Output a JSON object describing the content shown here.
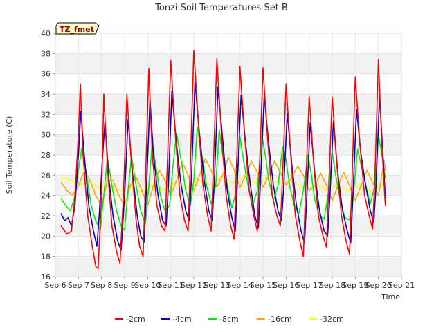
{
  "chart_data": {
    "type": "line",
    "title": "Tonzi Soil Temperatures Set B",
    "xlabel": "Time",
    "ylabel": "Soil Temperature (C)",
    "badge": "TZ_fmet",
    "xlim": [
      6,
      21
    ],
    "ylim": [
      16,
      40
    ],
    "yticks": [
      16,
      18,
      20,
      22,
      24,
      26,
      28,
      30,
      32,
      34,
      36,
      38,
      40
    ],
    "xtick_values": [
      6,
      7,
      8,
      9,
      10,
      11,
      12,
      13,
      14,
      15,
      16,
      17,
      18,
      19,
      20,
      21
    ],
    "xtick_labels": [
      "Sep 6",
      "Sep 7",
      "Sep 8",
      "Sep 9",
      "Sep 10",
      "Sep 11",
      "Sep 12",
      "Sep 13",
      "Sep 14",
      "Sep 15",
      "Sep 16",
      "Sep 17",
      "Sep 18",
      "Sep 19",
      "Sep 20",
      "Sep 21"
    ],
    "grid": "horizontal bands",
    "legend_position": "bottom",
    "series": [
      {
        "name": "-2cm",
        "color": "#ff0000",
        "x": [
          6.25,
          6.5,
          6.7,
          6.85,
          7.0,
          7.08,
          7.2,
          7.4,
          7.6,
          7.75,
          7.85,
          8.0,
          8.1,
          8.25,
          8.45,
          8.65,
          8.8,
          8.95,
          9.1,
          9.3,
          9.5,
          9.65,
          9.8,
          9.9,
          10.05,
          10.2,
          10.4,
          10.6,
          10.75,
          10.85,
          11.0,
          11.2,
          11.4,
          11.6,
          11.75,
          11.85,
          12.0,
          12.2,
          12.4,
          12.6,
          12.75,
          12.85,
          13.0,
          13.2,
          13.4,
          13.6,
          13.75,
          13.85,
          14.0,
          14.2,
          14.4,
          14.6,
          14.75,
          14.85,
          15.0,
          15.2,
          15.4,
          15.6,
          15.75,
          15.85,
          16.0,
          16.2,
          16.4,
          16.6,
          16.75,
          16.85,
          17.0,
          17.2,
          17.4,
          17.6,
          17.75,
          17.85,
          18.0,
          18.2,
          18.4,
          18.6,
          18.75,
          18.85,
          19.0,
          19.2,
          19.4,
          19.6,
          19.75,
          19.85,
          20.0,
          20.15,
          20.3
        ],
        "y": [
          21.0,
          20.2,
          20.5,
          24.0,
          30.0,
          35.0,
          28.0,
          22.0,
          19.0,
          17.0,
          16.8,
          24.0,
          34.0,
          27.0,
          21.0,
          18.5,
          17.3,
          24.0,
          34.0,
          27.0,
          21.5,
          19.0,
          18.0,
          25.0,
          36.5,
          28.0,
          23.0,
          21.0,
          20.5,
          27.0,
          37.3,
          30.0,
          24.0,
          21.5,
          20.5,
          27.0,
          38.3,
          31.0,
          25.0,
          22.0,
          20.5,
          27.0,
          37.5,
          30.0,
          24.0,
          21.0,
          19.7,
          27.0,
          36.7,
          30.0,
          24.5,
          22.0,
          20.5,
          27.0,
          36.6,
          29.5,
          24.0,
          22.0,
          21.0,
          26.0,
          35.0,
          28.0,
          22.0,
          19.5,
          18.0,
          25.0,
          33.8,
          27.0,
          22.0,
          20.0,
          18.9,
          25.0,
          33.7,
          27.0,
          22.0,
          19.5,
          18.2,
          25.0,
          35.7,
          29.0,
          24.0,
          22.0,
          20.7,
          26.0,
          37.4,
          29.0,
          23.0
        ]
      },
      {
        "name": "-4cm",
        "color": "#0000cc",
        "x": [
          6.25,
          6.4,
          6.55,
          6.7,
          6.85,
          7.0,
          7.1,
          7.25,
          7.45,
          7.65,
          7.8,
          7.9,
          8.05,
          8.15,
          8.3,
          8.5,
          8.7,
          8.85,
          9.0,
          9.15,
          9.35,
          9.55,
          9.7,
          9.85,
          9.95,
          10.1,
          10.25,
          10.45,
          10.65,
          10.8,
          10.9,
          11.05,
          11.25,
          11.45,
          11.65,
          11.8,
          11.9,
          12.05,
          12.25,
          12.45,
          12.65,
          12.8,
          12.9,
          13.05,
          13.25,
          13.45,
          13.65,
          13.8,
          13.9,
          14.05,
          14.25,
          14.45,
          14.65,
          14.8,
          14.9,
          15.05,
          15.25,
          15.45,
          15.65,
          15.8,
          15.9,
          16.05,
          16.25,
          16.45,
          16.65,
          16.8,
          16.9,
          17.05,
          17.25,
          17.45,
          17.65,
          17.8,
          17.9,
          18.05,
          18.25,
          18.45,
          18.65,
          18.8,
          18.9,
          19.05,
          19.25,
          19.45,
          19.65,
          19.8,
          19.9,
          20.05,
          20.2,
          20.3
        ],
        "y": [
          22.2,
          21.5,
          21.8,
          21.0,
          23.0,
          28.0,
          32.3,
          28.0,
          23.0,
          20.5,
          19.0,
          22.0,
          28.0,
          31.3,
          26.0,
          22.0,
          19.5,
          18.6,
          24.0,
          31.5,
          26.0,
          22.0,
          20.0,
          19.4,
          25.0,
          33.5,
          28.0,
          24.0,
          21.5,
          21.0,
          25.0,
          34.3,
          29.0,
          25.0,
          22.5,
          21.5,
          26.0,
          35.2,
          30.0,
          25.5,
          22.5,
          21.5,
          26.0,
          34.7,
          29.5,
          24.5,
          21.8,
          20.5,
          26.0,
          33.9,
          29.0,
          25.0,
          22.0,
          20.8,
          26.0,
          33.8,
          29.0,
          25.0,
          22.5,
          21.5,
          25.0,
          32.1,
          27.0,
          23.0,
          20.5,
          19.3,
          24.0,
          31.2,
          26.0,
          22.5,
          20.5,
          20.0,
          24.0,
          31.3,
          26.0,
          22.5,
          20.5,
          19.3,
          24.0,
          32.5,
          28.0,
          25.0,
          22.5,
          21.3,
          25.0,
          33.8,
          28.0,
          23.8
        ]
      },
      {
        "name": "-8cm",
        "color": "#00ee00",
        "x": [
          6.25,
          6.45,
          6.65,
          6.85,
          7.0,
          7.15,
          7.35,
          7.55,
          7.75,
          7.95,
          8.1,
          8.25,
          8.45,
          8.65,
          8.85,
          9.0,
          9.15,
          9.3,
          9.5,
          9.7,
          9.9,
          10.05,
          10.2,
          10.35,
          10.55,
          10.75,
          10.95,
          11.1,
          11.25,
          11.45,
          11.65,
          11.85,
          12.0,
          12.15,
          12.35,
          12.55,
          12.75,
          12.95,
          13.1,
          13.25,
          13.45,
          13.65,
          13.85,
          14.0,
          14.15,
          14.35,
          14.55,
          14.75,
          14.95,
          15.1,
          15.25,
          15.45,
          15.65,
          15.85,
          16.0,
          16.15,
          16.35,
          16.55,
          16.75,
          16.95,
          17.1,
          17.25,
          17.45,
          17.65,
          17.85,
          18.0,
          18.15,
          18.35,
          18.55,
          18.75,
          18.95,
          19.1,
          19.25,
          19.45,
          19.65,
          19.85,
          20.0,
          20.15,
          20.3
        ],
        "y": [
          23.7,
          23.0,
          22.5,
          24.0,
          26.5,
          28.7,
          26.0,
          23.0,
          21.5,
          20.6,
          24.0,
          27.8,
          25.0,
          22.5,
          21.0,
          20.6,
          24.5,
          27.9,
          25.0,
          22.5,
          21.2,
          25.0,
          29.2,
          27.0,
          24.0,
          22.5,
          23.0,
          27.0,
          30.1,
          27.5,
          24.5,
          23.0,
          25.5,
          30.8,
          28.0,
          25.0,
          23.2,
          25.0,
          30.5,
          28.0,
          25.0,
          22.8,
          24.5,
          29.8,
          27.5,
          25.0,
          23.0,
          24.5,
          29.9,
          28.0,
          25.5,
          23.5,
          25.0,
          28.8,
          27.5,
          25.0,
          23.0,
          22.2,
          24.5,
          28.0,
          26.0,
          23.5,
          22.0,
          21.7,
          24.5,
          28.2,
          26.0,
          23.5,
          21.8,
          21.6,
          25.0,
          28.6,
          27.0,
          25.0,
          23.2,
          25.0,
          30.0,
          28.0,
          25.7
        ]
      },
      {
        "name": "-16cm",
        "color": "#ffa500",
        "x": [
          6.25,
          6.5,
          6.75,
          7.0,
          7.25,
          7.5,
          7.75,
          8.0,
          8.25,
          8.5,
          8.75,
          9.0,
          9.25,
          9.5,
          9.75,
          10.0,
          10.25,
          10.5,
          10.75,
          11.0,
          11.25,
          11.5,
          11.75,
          12.0,
          12.25,
          12.5,
          12.75,
          13.0,
          13.25,
          13.5,
          13.75,
          14.0,
          14.25,
          14.5,
          14.75,
          15.0,
          15.25,
          15.5,
          15.75,
          16.0,
          16.25,
          16.5,
          16.75,
          17.0,
          17.25,
          17.5,
          17.75,
          18.0,
          18.25,
          18.5,
          18.75,
          19.0,
          19.25,
          19.5,
          19.75,
          20.0,
          20.25,
          20.3
        ],
        "y": [
          25.3,
          24.5,
          24.0,
          25.0,
          26.4,
          25.5,
          24.0,
          23.0,
          25.5,
          25.5,
          24.0,
          23.0,
          25.0,
          25.8,
          24.5,
          23.0,
          25.0,
          26.5,
          25.5,
          24.0,
          25.5,
          27.3,
          26.0,
          24.5,
          26.0,
          27.6,
          26.5,
          24.8,
          26.0,
          27.8,
          26.5,
          24.8,
          26.0,
          27.4,
          26.3,
          24.8,
          26.0,
          27.4,
          26.3,
          25.0,
          25.8,
          26.9,
          26.0,
          24.5,
          25.0,
          26.2,
          25.0,
          23.5,
          25.0,
          26.3,
          25.0,
          23.5,
          25.0,
          26.5,
          25.3,
          24.0,
          27.4,
          26.5
        ]
      },
      {
        "name": "-32cm",
        "color": "#ffff00",
        "x": [
          6.25,
          6.75,
          7.0,
          7.5,
          7.9,
          8.3,
          8.8,
          9.2,
          9.7,
          10.2,
          10.7,
          11.2,
          11.7,
          12.2,
          12.7,
          13.2,
          13.7,
          14.2,
          14.7,
          15.2,
          15.7,
          16.2,
          16.7,
          17.2,
          17.7,
          18.2,
          18.7,
          19.2,
          19.7,
          20.2,
          20.3
        ],
        "y": [
          25.8,
          25.5,
          25.0,
          25.4,
          24.7,
          25.0,
          24.5,
          24.9,
          24.3,
          25.0,
          24.6,
          25.3,
          24.8,
          25.6,
          25.0,
          25.9,
          25.2,
          25.9,
          25.2,
          25.8,
          25.2,
          25.5,
          24.8,
          25.3,
          24.6,
          25.0,
          24.5,
          25.0,
          24.4,
          25.0,
          25.2
        ]
      }
    ]
  }
}
